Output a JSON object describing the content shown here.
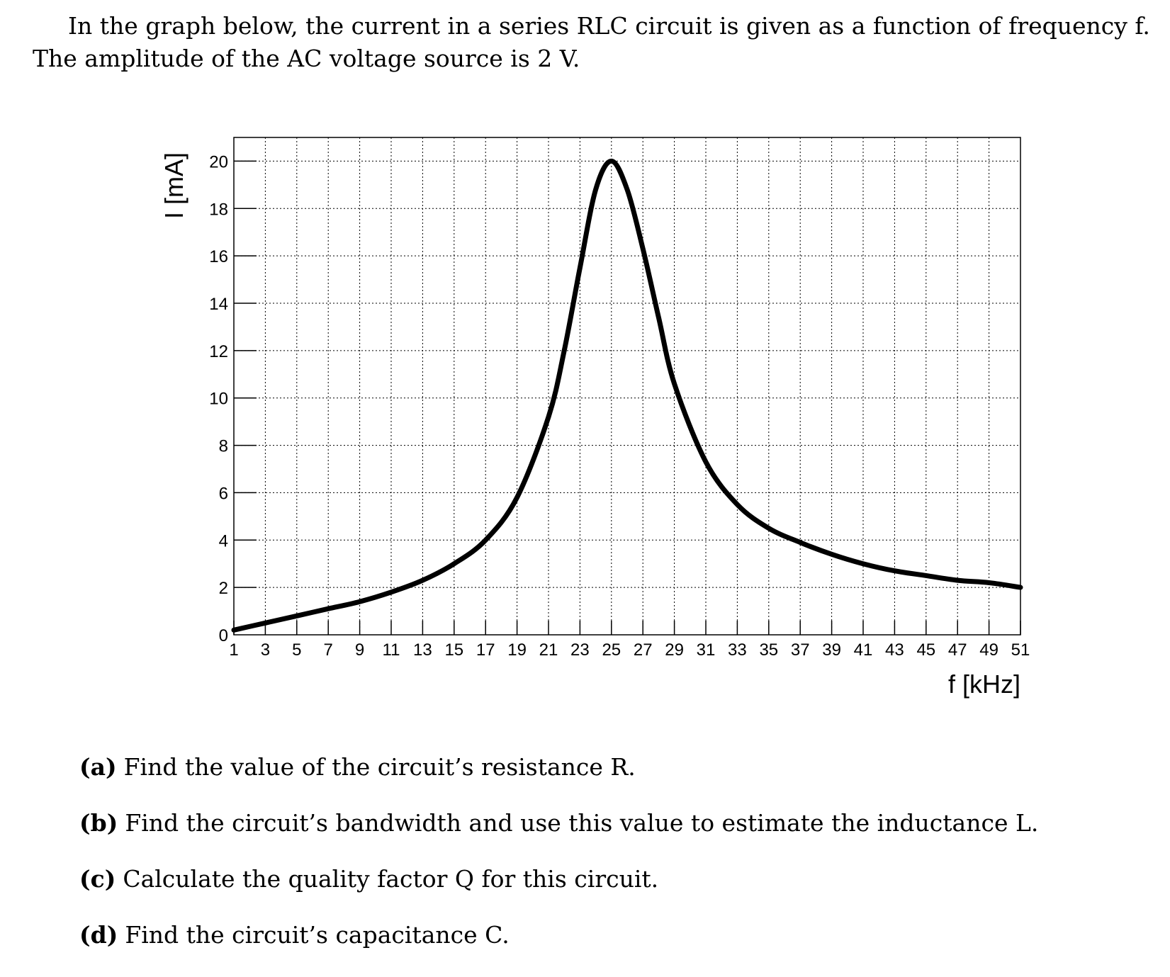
{
  "intro": {
    "line1": "In the graph below, the current in a series RLC circuit is given as a function of frequency f.",
    "line2": "The amplitude of the AC voltage source is 2 V."
  },
  "chart_data": {
    "type": "line",
    "xlabel": "f [kHz]",
    "ylabel": "I [mA]",
    "xlim": [
      1,
      51
    ],
    "ylim": [
      0,
      21
    ],
    "grid": true,
    "x_ticks": [
      1,
      3,
      5,
      7,
      9,
      11,
      13,
      15,
      17,
      19,
      21,
      23,
      25,
      27,
      29,
      31,
      33,
      35,
      37,
      39,
      41,
      43,
      45,
      47,
      49,
      51
    ],
    "y_ticks": [
      0,
      2,
      4,
      6,
      8,
      10,
      12,
      14,
      16,
      18,
      20
    ],
    "series": [
      {
        "x": [
          1,
          3,
          5,
          7,
          9,
          11,
          13,
          15,
          17,
          19,
          21,
          22,
          23,
          24,
          25,
          26,
          27,
          28,
          29,
          31,
          33,
          35,
          37,
          39,
          41,
          43,
          45,
          47,
          49,
          51
        ],
        "y": [
          0.2,
          0.5,
          0.8,
          1.1,
          1.4,
          1.8,
          2.3,
          3.0,
          4.0,
          5.8,
          9.2,
          12.0,
          15.5,
          18.8,
          20.0,
          18.8,
          16.3,
          13.4,
          10.6,
          7.3,
          5.5,
          4.5,
          3.9,
          3.4,
          3.0,
          2.7,
          2.5,
          2.3,
          2.2,
          2.0
        ]
      }
    ]
  },
  "questions": [
    {
      "label": "(a)",
      "text": "Find the value of the circuit’s resistance R."
    },
    {
      "label": "(b)",
      "text": "Find the circuit’s bandwidth and use this value to estimate the inductance L."
    },
    {
      "label": "(c)",
      "text": "Calculate the quality factor Q for this circuit."
    },
    {
      "label": "(d)",
      "text": "Find the circuit’s capacitance C."
    }
  ]
}
